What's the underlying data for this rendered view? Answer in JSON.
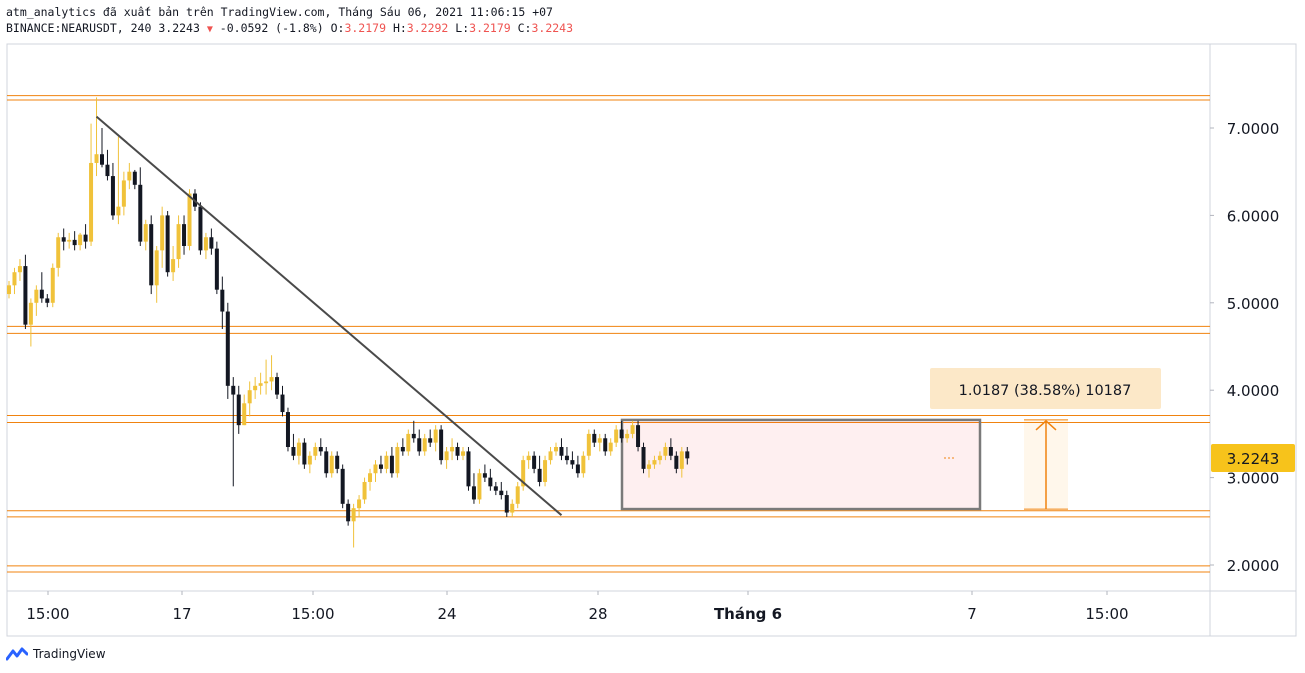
{
  "header": {
    "line1": "atm_analytics đã xuất bản trên TradingView.com, Tháng Sáu 06, 2021 11:06:15 +07",
    "symbol": "BINANCE:NEARUSDT, 240",
    "last": "3.2243",
    "change": "-0.0592 (-1.8%)",
    "o_label": "O:",
    "o_value": "3.2179",
    "h_label": "H:",
    "h_value": "3.2292",
    "l_label": "L:",
    "l_value": "3.2179",
    "c_label": "C:",
    "c_value": "3.2243"
  },
  "footer": {
    "brand": "TradingView"
  },
  "chart_data": {
    "type": "candlestick",
    "symbol": "BINANCE:NEARUSDT",
    "interval": "240",
    "y_ticks": [
      2.0,
      3.0,
      4.0,
      5.0,
      6.0,
      7.0
    ],
    "y_tick_labels": [
      "2.0000",
      "3.0000",
      "4.0000",
      "5.0000",
      "6.0000",
      "7.0000"
    ],
    "ylim": [
      1.6,
      7.95
    ],
    "x_tick_labels": [
      "15:00",
      "17",
      "15:00",
      "24",
      "28",
      "Tháng 6",
      "7",
      "15:00"
    ],
    "current_price_label": "3.2243",
    "measure_label": "1.0187 (38.58%) 10187",
    "measure_from": 2.64,
    "measure_to": 3.66,
    "range_box": {
      "low": 2.64,
      "high": 3.66
    },
    "horizontal_levels": [
      7.37,
      7.32,
      4.73,
      4.65,
      3.71,
      3.63,
      2.62,
      2.55,
      1.99,
      1.92
    ],
    "trendline": [
      {
        "index": 16,
        "price": 7.13
      },
      {
        "index": 101,
        "price": 2.57
      }
    ],
    "colors": {
      "up": "#f0c23a",
      "down": "#131722",
      "level": "#f0830f",
      "trend": "#4a4a4a",
      "axis_label": "#f7c31b"
    },
    "candles": [
      [
        5.1,
        5.25,
        5.05,
        5.2
      ],
      [
        5.2,
        5.4,
        5.1,
        5.35
      ],
      [
        5.35,
        5.5,
        5.25,
        5.42
      ],
      [
        5.42,
        5.55,
        4.7,
        4.75
      ],
      [
        4.75,
        5.05,
        4.5,
        5.0
      ],
      [
        5.0,
        5.2,
        4.85,
        5.15
      ],
      [
        5.15,
        5.35,
        5.0,
        5.05
      ],
      [
        5.05,
        5.1,
        4.95,
        5.0
      ],
      [
        5.0,
        5.45,
        4.95,
        5.4
      ],
      [
        5.4,
        5.8,
        5.3,
        5.75
      ],
      [
        5.75,
        5.85,
        5.6,
        5.7
      ],
      [
        5.7,
        5.8,
        5.62,
        5.72
      ],
      [
        5.72,
        5.82,
        5.6,
        5.66
      ],
      [
        5.66,
        5.8,
        5.6,
        5.78
      ],
      [
        5.78,
        5.9,
        5.62,
        5.7
      ],
      [
        5.7,
        7.05,
        5.65,
        6.6
      ],
      [
        6.6,
        7.35,
        6.45,
        6.7
      ],
      [
        6.7,
        7.0,
        6.55,
        6.58
      ],
      [
        6.58,
        6.75,
        6.4,
        6.45
      ],
      [
        6.45,
        6.6,
        5.95,
        6.0
      ],
      [
        6.0,
        6.9,
        5.9,
        6.1
      ],
      [
        6.1,
        6.5,
        6.0,
        6.4
      ],
      [
        6.4,
        6.6,
        6.3,
        6.5
      ],
      [
        6.5,
        6.52,
        6.3,
        6.35
      ],
      [
        6.35,
        6.55,
        5.65,
        5.7
      ],
      [
        5.7,
        5.95,
        5.6,
        5.9
      ],
      [
        5.9,
        6.0,
        5.1,
        5.2
      ],
      [
        5.2,
        5.65,
        5.0,
        5.6
      ],
      [
        5.6,
        6.1,
        5.4,
        6.0
      ],
      [
        6.0,
        6.05,
        5.3,
        5.35
      ],
      [
        5.35,
        5.65,
        5.25,
        5.5
      ],
      [
        5.5,
        6.0,
        5.4,
        5.9
      ],
      [
        5.9,
        6.0,
        5.55,
        5.65
      ],
      [
        5.65,
        6.3,
        5.6,
        6.25
      ],
      [
        6.25,
        6.3,
        6.05,
        6.1
      ],
      [
        6.1,
        6.15,
        5.55,
        5.6
      ],
      [
        5.6,
        5.8,
        5.5,
        5.75
      ],
      [
        5.75,
        5.85,
        5.55,
        5.62
      ],
      [
        5.62,
        5.7,
        5.1,
        5.15
      ],
      [
        5.15,
        5.3,
        4.7,
        4.9
      ],
      [
        4.9,
        5.0,
        3.9,
        4.05
      ],
      [
        4.05,
        4.15,
        2.9,
        3.95
      ],
      [
        3.95,
        4.05,
        3.5,
        3.6
      ],
      [
        3.6,
        3.95,
        3.6,
        3.85
      ],
      [
        3.85,
        4.1,
        3.7,
        4.0
      ],
      [
        4.0,
        4.15,
        3.9,
        4.05
      ],
      [
        4.05,
        4.2,
        3.95,
        4.08
      ],
      [
        4.08,
        4.35,
        3.95,
        4.1
      ],
      [
        4.1,
        4.4,
        4.0,
        4.15
      ],
      [
        4.15,
        4.2,
        3.9,
        3.95
      ],
      [
        3.95,
        4.05,
        3.7,
        3.75
      ],
      [
        3.75,
        3.8,
        3.3,
        3.35
      ],
      [
        3.35,
        3.5,
        3.2,
        3.25
      ],
      [
        3.25,
        3.45,
        3.15,
        3.4
      ],
      [
        3.4,
        3.45,
        3.1,
        3.15
      ],
      [
        3.15,
        3.3,
        3.05,
        3.25
      ],
      [
        3.25,
        3.4,
        3.2,
        3.35
      ],
      [
        3.35,
        3.45,
        3.25,
        3.3
      ],
      [
        3.3,
        3.35,
        3.0,
        3.05
      ],
      [
        3.05,
        3.3,
        3.0,
        3.25
      ],
      [
        3.25,
        3.3,
        3.05,
        3.1
      ],
      [
        3.1,
        3.15,
        2.65,
        2.7
      ],
      [
        2.7,
        2.75,
        2.45,
        2.5
      ],
      [
        2.5,
        2.7,
        2.2,
        2.65
      ],
      [
        2.65,
        2.8,
        2.55,
        2.75
      ],
      [
        2.75,
        3.0,
        2.7,
        2.95
      ],
      [
        2.95,
        3.1,
        2.85,
        3.05
      ],
      [
        3.05,
        3.2,
        2.95,
        3.15
      ],
      [
        3.15,
        3.25,
        3.05,
        3.1
      ],
      [
        3.1,
        3.3,
        3.05,
        3.25
      ],
      [
        3.25,
        3.35,
        3.0,
        3.05
      ],
      [
        3.05,
        3.4,
        3.0,
        3.35
      ],
      [
        3.35,
        3.45,
        3.25,
        3.3
      ],
      [
        3.3,
        3.55,
        3.25,
        3.5
      ],
      [
        3.5,
        3.65,
        3.4,
        3.45
      ],
      [
        3.45,
        3.55,
        3.25,
        3.3
      ],
      [
        3.3,
        3.5,
        3.25,
        3.45
      ],
      [
        3.45,
        3.55,
        3.35,
        3.4
      ],
      [
        3.4,
        3.6,
        3.3,
        3.55
      ],
      [
        3.55,
        3.6,
        3.15,
        3.2
      ],
      [
        3.2,
        3.35,
        3.1,
        3.3
      ],
      [
        3.3,
        3.45,
        3.2,
        3.35
      ],
      [
        3.35,
        3.4,
        3.2,
        3.25
      ],
      [
        3.25,
        3.35,
        3.2,
        3.3
      ],
      [
        3.3,
        3.35,
        2.85,
        2.9
      ],
      [
        2.9,
        3.05,
        2.7,
        2.75
      ],
      [
        2.75,
        3.1,
        2.7,
        3.05
      ],
      [
        3.05,
        3.15,
        2.95,
        3.0
      ],
      [
        3.0,
        3.1,
        2.85,
        2.9
      ],
      [
        2.9,
        2.95,
        2.8,
        2.85
      ],
      [
        2.85,
        2.95,
        2.75,
        2.8
      ],
      [
        2.8,
        2.85,
        2.55,
        2.6
      ],
      [
        2.6,
        2.75,
        2.55,
        2.7
      ],
      [
        2.7,
        2.95,
        2.65,
        2.9
      ],
      [
        2.9,
        3.25,
        2.85,
        3.2
      ],
      [
        3.2,
        3.3,
        3.1,
        3.25
      ],
      [
        3.25,
        3.3,
        3.05,
        3.1
      ],
      [
        3.1,
        3.25,
        2.9,
        2.95
      ],
      [
        2.95,
        3.25,
        2.9,
        3.2
      ],
      [
        3.2,
        3.35,
        3.15,
        3.3
      ],
      [
        3.3,
        3.4,
        3.25,
        3.35
      ],
      [
        3.35,
        3.45,
        3.2,
        3.25
      ],
      [
        3.25,
        3.35,
        3.15,
        3.2
      ],
      [
        3.2,
        3.3,
        3.1,
        3.15
      ],
      [
        3.15,
        3.25,
        3.0,
        3.05
      ],
      [
        3.05,
        3.3,
        3.0,
        3.25
      ],
      [
        3.25,
        3.55,
        3.2,
        3.5
      ],
      [
        3.5,
        3.55,
        3.35,
        3.4
      ],
      [
        3.4,
        3.5,
        3.3,
        3.45
      ],
      [
        3.45,
        3.5,
        3.25,
        3.3
      ],
      [
        3.3,
        3.45,
        3.25,
        3.4
      ],
      [
        3.4,
        3.6,
        3.35,
        3.55
      ],
      [
        3.55,
        3.65,
        3.4,
        3.45
      ],
      [
        3.45,
        3.55,
        3.4,
        3.5
      ],
      [
        3.5,
        3.65,
        3.45,
        3.6
      ],
      [
        3.6,
        3.65,
        3.3,
        3.35
      ],
      [
        3.35,
        3.4,
        3.05,
        3.1
      ],
      [
        3.1,
        3.2,
        3.0,
        3.15
      ],
      [
        3.15,
        3.25,
        3.1,
        3.2
      ],
      [
        3.2,
        3.3,
        3.15,
        3.25
      ],
      [
        3.25,
        3.4,
        3.2,
        3.35
      ],
      [
        3.35,
        3.45,
        3.2,
        3.25
      ],
      [
        3.25,
        3.3,
        3.05,
        3.1
      ],
      [
        3.1,
        3.35,
        3.0,
        3.3
      ],
      [
        3.3,
        3.35,
        3.15,
        3.22
      ]
    ]
  }
}
